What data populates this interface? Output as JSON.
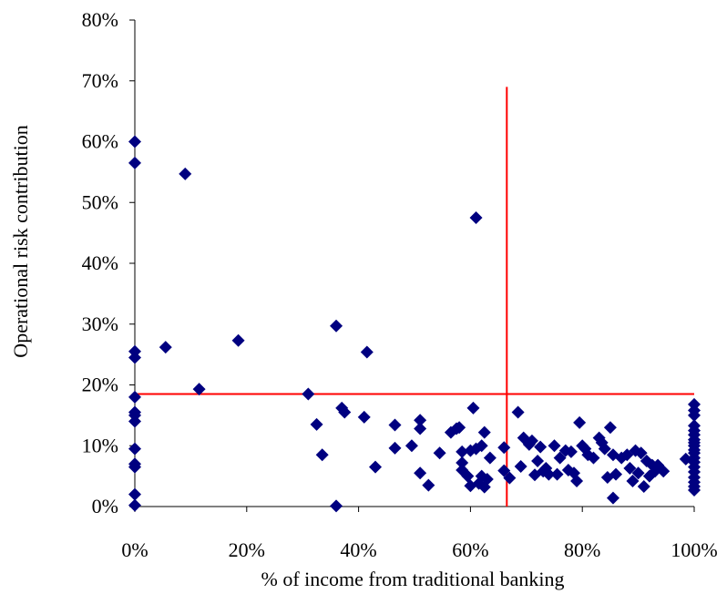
{
  "colors": {
    "marker": "#000080",
    "reference_line": "#ff0000",
    "axis": "#000000"
  },
  "chart_data": {
    "type": "scatter",
    "title": "",
    "xlabel": "% of income from traditional banking",
    "ylabel": "Operational risk contribution",
    "xlim": [
      0,
      100
    ],
    "ylim": [
      0,
      80
    ],
    "x_ticks": [
      "0%",
      "20%",
      "40%",
      "60%",
      "80%",
      "100%"
    ],
    "y_ticks": [
      "0%",
      "10%",
      "20%",
      "30%",
      "40%",
      "50%",
      "60%",
      "70%",
      "80%"
    ],
    "x_tick_values": [
      0,
      20,
      40,
      60,
      80,
      100
    ],
    "y_tick_values": [
      0,
      10,
      20,
      30,
      40,
      50,
      60,
      70,
      80
    ],
    "grid": false,
    "legend": "none",
    "marker": "diamond",
    "reference_lines": [
      {
        "orientation": "vertical",
        "x": 66.5,
        "y_range": [
          0,
          69
        ]
      },
      {
        "orientation": "horizontal",
        "y": 18.5,
        "x_range": [
          0,
          100
        ]
      }
    ],
    "points": [
      [
        0,
        60
      ],
      [
        0,
        56.5
      ],
      [
        0,
        25.5
      ],
      [
        0,
        24.5
      ],
      [
        0,
        18
      ],
      [
        0,
        15.5
      ],
      [
        0,
        15
      ],
      [
        0,
        14
      ],
      [
        0,
        9.5
      ],
      [
        0,
        7
      ],
      [
        0,
        6.5
      ],
      [
        0,
        2
      ],
      [
        0,
        0.2
      ],
      [
        5.5,
        26.2
      ],
      [
        9,
        54.7
      ],
      [
        11.5,
        19.3
      ],
      [
        18.5,
        27.3
      ],
      [
        31,
        18.5
      ],
      [
        32.5,
        13.5
      ],
      [
        33.5,
        8.5
      ],
      [
        36,
        29.7
      ],
      [
        36,
        0.1
      ],
      [
        37,
        16.2
      ],
      [
        37.5,
        15.5
      ],
      [
        41,
        14.7
      ],
      [
        41.5,
        25.4
      ],
      [
        43,
        6.5
      ],
      [
        46.5,
        13.4
      ],
      [
        46.5,
        9.6
      ],
      [
        49.5,
        10
      ],
      [
        51,
        14.2
      ],
      [
        51,
        12.8
      ],
      [
        51,
        5.5
      ],
      [
        52.5,
        3.5
      ],
      [
        54.5,
        8.8
      ],
      [
        56.5,
        12.2
      ],
      [
        57.5,
        12.8
      ],
      [
        58,
        13
      ],
      [
        58.5,
        9
      ],
      [
        58.5,
        6
      ],
      [
        58.5,
        7.2
      ],
      [
        59.5,
        5
      ],
      [
        60,
        9.2
      ],
      [
        60,
        3.4
      ],
      [
        60.5,
        16.2
      ],
      [
        61,
        47.5
      ],
      [
        61,
        9.5
      ],
      [
        61.5,
        3.8
      ],
      [
        62,
        10
      ],
      [
        62,
        5
      ],
      [
        62.5,
        12.2
      ],
      [
        62.5,
        3.2
      ],
      [
        63,
        4.5
      ],
      [
        63.5,
        8
      ],
      [
        66,
        9.7
      ],
      [
        66,
        5.9
      ],
      [
        67,
        4.7
      ],
      [
        68.5,
        15.5
      ],
      [
        69,
        6.6
      ],
      [
        69.5,
        11.3
      ],
      [
        70.5,
        10.2
      ],
      [
        71,
        10.8
      ],
      [
        71.5,
        5.2
      ],
      [
        72,
        7.5
      ],
      [
        72.5,
        9.8
      ],
      [
        73,
        5.8
      ],
      [
        73.5,
        6.3
      ],
      [
        74,
        5.3
      ],
      [
        75,
        10
      ],
      [
        75.5,
        5.3
      ],
      [
        76,
        8
      ],
      [
        77,
        9.2
      ],
      [
        77.5,
        6
      ],
      [
        78,
        9
      ],
      [
        78.5,
        5.5
      ],
      [
        79,
        4.2
      ],
      [
        79.5,
        13.8
      ],
      [
        80,
        10
      ],
      [
        80.5,
        9.5
      ],
      [
        81,
        8.5
      ],
      [
        82,
        8
      ],
      [
        83,
        11.3
      ],
      [
        83.5,
        10.5
      ],
      [
        84,
        9.5
      ],
      [
        84.5,
        4.8
      ],
      [
        85,
        13
      ],
      [
        85.5,
        8.5
      ],
      [
        85.5,
        1.4
      ],
      [
        86,
        5.3
      ],
      [
        87,
        8
      ],
      [
        88,
        8.5
      ],
      [
        88.5,
        6.3
      ],
      [
        89,
        4.2
      ],
      [
        89.5,
        9.2
      ],
      [
        90,
        5.5
      ],
      [
        90.5,
        8.8
      ],
      [
        91,
        3.3
      ],
      [
        91.5,
        7.5
      ],
      [
        92,
        5
      ],
      [
        92.5,
        6.8
      ],
      [
        93,
        5.8
      ],
      [
        93.5,
        6.8
      ],
      [
        94.5,
        5.8
      ],
      [
        98.5,
        7.8
      ],
      [
        100,
        16.8
      ],
      [
        100,
        15.8
      ],
      [
        100,
        15
      ],
      [
        100,
        13.3
      ],
      [
        100,
        12.5
      ],
      [
        100,
        11.8
      ],
      [
        100,
        11
      ],
      [
        100,
        10.5
      ],
      [
        100,
        10
      ],
      [
        100,
        9.3
      ],
      [
        100,
        8.8
      ],
      [
        100,
        8
      ],
      [
        100,
        7.3
      ],
      [
        100,
        6.5
      ],
      [
        100,
        5.7
      ],
      [
        100,
        4.8
      ],
      [
        100,
        4
      ],
      [
        100,
        3.3
      ],
      [
        100,
        2.7
      ]
    ]
  }
}
